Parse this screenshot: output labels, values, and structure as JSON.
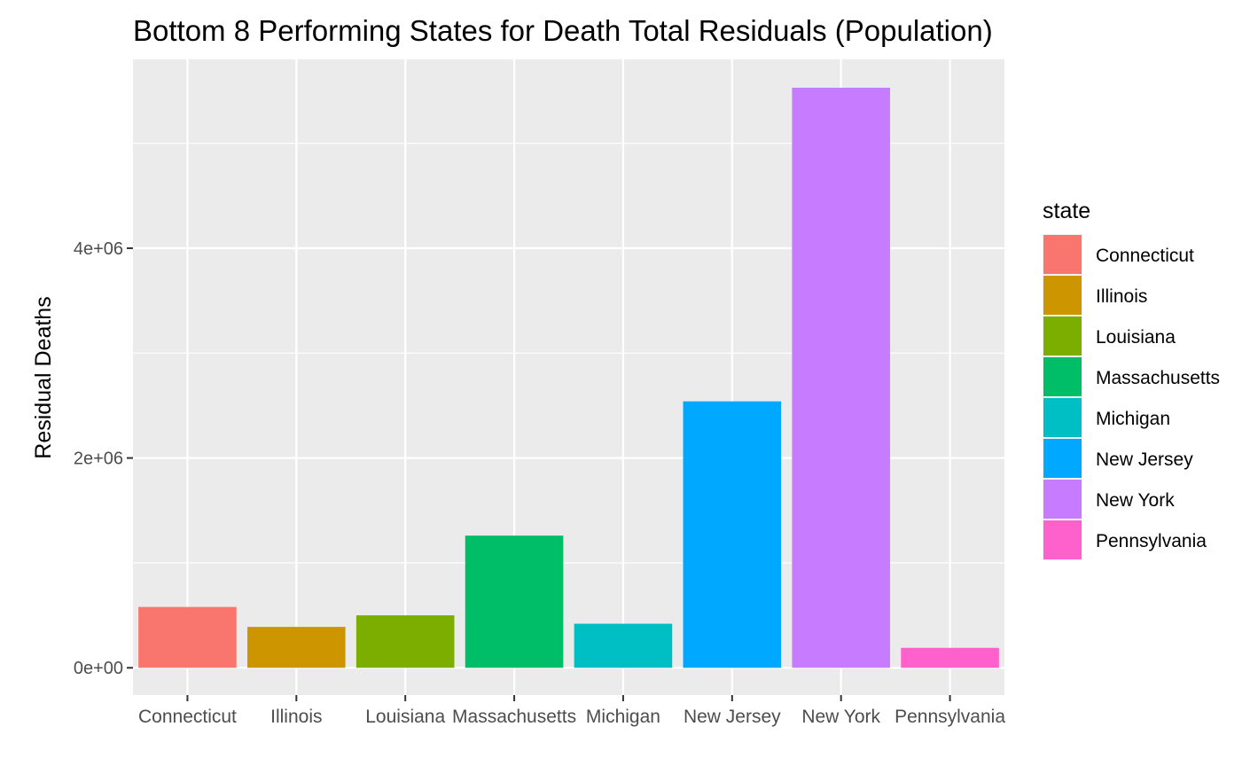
{
  "chart_data": {
    "type": "bar",
    "title": "Bottom 8 Performing States for Death Total Residuals (Population)",
    "xlabel": "",
    "ylabel": "Residual Deaths",
    "categories": [
      "Connecticut",
      "Illinois",
      "Louisiana",
      "Massachusetts",
      "Michigan",
      "New Jersey",
      "New York",
      "Pennsylvania"
    ],
    "values": [
      580000,
      390000,
      500000,
      1260000,
      420000,
      2540000,
      5530000,
      190000
    ],
    "colors": [
      "#F8766D",
      "#CD9600",
      "#7CAE00",
      "#00BE67",
      "#00BFC4",
      "#00A9FF",
      "#C77CFF",
      "#FF61CC"
    ],
    "y_ticks": [
      0,
      2000000,
      4000000
    ],
    "y_tick_labels": [
      "0e+00",
      "2e+06",
      "4e+06"
    ],
    "ylim": [
      -260000,
      5800000
    ],
    "grid": true,
    "legend": {
      "title": "state",
      "position": "right",
      "entries": [
        "Connecticut",
        "Illinois",
        "Louisiana",
        "Massachusetts",
        "Michigan",
        "New Jersey",
        "New York",
        "Pennsylvania"
      ]
    },
    "panel_background": "#EBEBEB",
    "grid_color": "#FFFFFF"
  }
}
